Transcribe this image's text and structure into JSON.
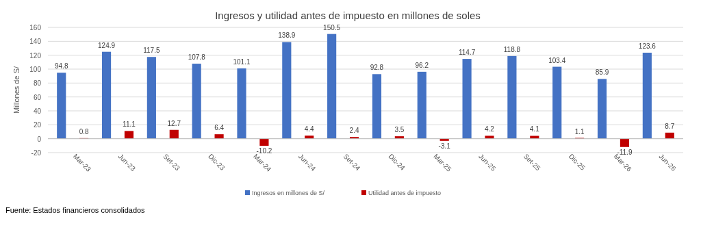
{
  "chart_data": {
    "type": "bar",
    "title": "Ingresos y utilidad antes de impuesto en millones de soles",
    "ylabel": "Millones de S/",
    "categories": [
      "Mar-23",
      "Jun-23",
      "Set-23",
      "Dic-23",
      "Mar-24",
      "Jun-24",
      "Set-24",
      "Dic-24",
      "Mar-25",
      "Jun-25",
      "Set-25",
      "Dic-25",
      "Mar-26",
      "Jun-26"
    ],
    "series": [
      {
        "name": "Ingresos en millones de S/",
        "color": "#4472c4",
        "values": [
          94.8,
          124.9,
          117.5,
          107.8,
          101.1,
          138.9,
          150.5,
          92.8,
          96.2,
          114.7,
          118.8,
          103.4,
          85.9,
          123.6
        ]
      },
      {
        "name": "Utilidad antes de impuesto",
        "color": "#c00000",
        "values": [
          0.8,
          11.1,
          12.7,
          6.4,
          -10.2,
          4.4,
          2.4,
          3.5,
          -3.1,
          4.2,
          4.1,
          1.1,
          -11.9,
          8.7
        ]
      }
    ],
    "ylim": [
      -20,
      160
    ],
    "yticks": [
      -20,
      0,
      20,
      40,
      60,
      80,
      100,
      120,
      140,
      160
    ],
    "grid": "y",
    "legend": "bottom",
    "data_labels": true,
    "annotations": [
      "Fuente: Estados financieros consolidados"
    ]
  }
}
